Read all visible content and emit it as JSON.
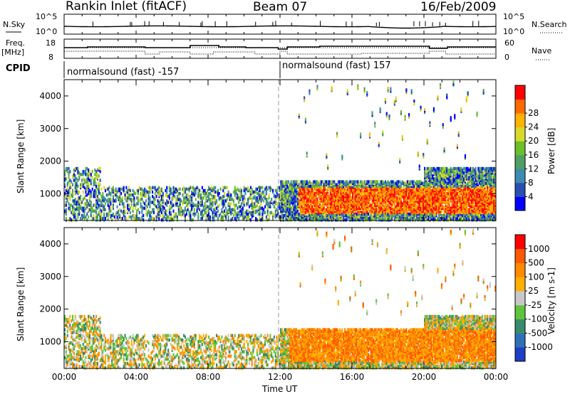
{
  "header": {
    "station": "Rankin Inlet (fitACF)",
    "beam": "Beam 07",
    "date": "16/Feb/2009"
  },
  "top_panels": {
    "nsky_label": "N.Sky",
    "nsky_ticks": [
      "10^5",
      "10^0"
    ],
    "nsearch_label": "N.Search",
    "nsearch_ticks": [
      "10^5",
      "10^0"
    ],
    "freq_label": "Freq.",
    "freq_unit": "[MHz]",
    "freq_ticks": [
      "18",
      "8"
    ],
    "nave_label": "Nave",
    "nave_ticks": [
      "60",
      "0"
    ],
    "cpid_label": "CPID",
    "cpid_segments": [
      {
        "label": "normalsound (fast) -157",
        "start_hour": 0
      },
      {
        "label": "normalsound (fast) 157",
        "start_hour": 12
      }
    ]
  },
  "chart_data": [
    {
      "type": "heatmap",
      "title": "",
      "quantity": "power",
      "xlabel": "",
      "ylabel": "Slant Range [km]",
      "xlim_hours": [
        0,
        24
      ],
      "ylim_km": [
        180,
        4500
      ],
      "y_ticks": [
        1000,
        2000,
        3000,
        4000
      ],
      "x_tick_hours": [
        0,
        4,
        8,
        12,
        16,
        20,
        24
      ],
      "colorbar": {
        "label": "Power [dB]",
        "ticks": [
          "4",
          "8",
          "12",
          "16",
          "20",
          "24",
          "28"
        ],
        "colors": [
          "#0000ff",
          "#2a4fb3",
          "#3d8bb0",
          "#4f9e65",
          "#6abf2a",
          "#d8d92a",
          "#ffb300",
          "#ff6a00",
          "#ff0000"
        ]
      }
    },
    {
      "type": "heatmap",
      "title": "",
      "quantity": "velocity",
      "xlabel": "Time UT",
      "ylabel": "Slant Range [km]",
      "xlim_hours": [
        0,
        24
      ],
      "ylim_km": [
        180,
        4500
      ],
      "y_ticks": [
        1000,
        2000,
        3000,
        4000
      ],
      "x_tick_hours": [
        0,
        4,
        8,
        12,
        16,
        20,
        24
      ],
      "x_tick_labels": [
        "00:00",
        "04:00",
        "08:00",
        "12:00",
        "16:00",
        "20:00",
        "00:00"
      ],
      "colorbar": {
        "label": "Velocity [m s-1]",
        "ticks": [
          "1000",
          "500",
          "100",
          "25",
          "-25",
          "-100",
          "-500",
          "-1000"
        ],
        "colors": [
          "#1c3fc4",
          "#2f6fb8",
          "#3a8a6a",
          "#5ec43c",
          "#c8c8c8",
          "#ffb000",
          "#ff8a00",
          "#ff5a00",
          "#ff0000"
        ]
      }
    }
  ]
}
